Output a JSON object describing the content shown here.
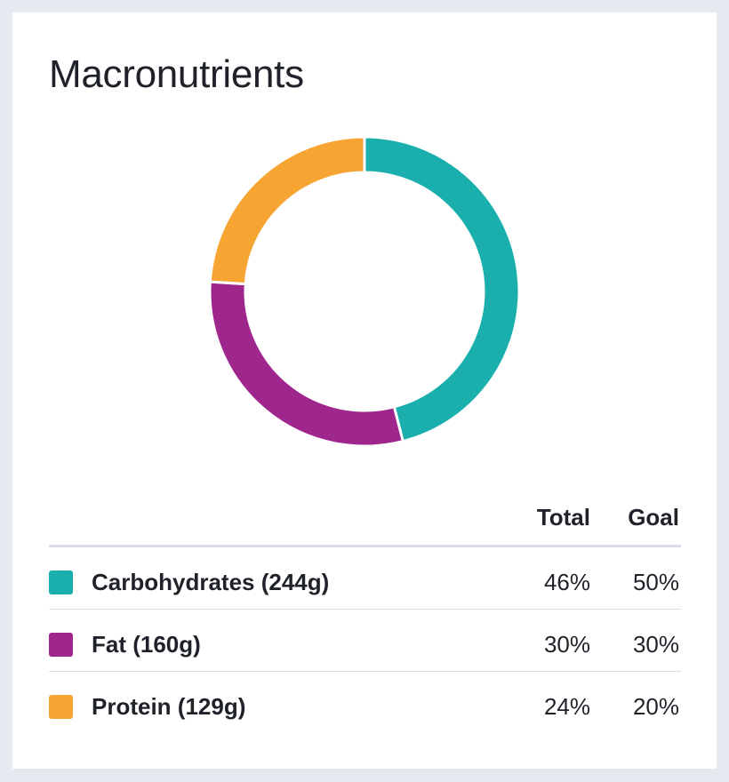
{
  "card": {
    "title": "Macronutrients"
  },
  "table": {
    "headers": {
      "total": "Total",
      "goal": "Goal"
    },
    "rows": [
      {
        "label": "Carbohydrates (244g)",
        "total": "46%",
        "goal": "50%",
        "color": "#1aafac"
      },
      {
        "label": "Fat (160g)",
        "total": "30%",
        "goal": "30%",
        "color": "#9e268d"
      },
      {
        "label": "Protein (129g)",
        "total": "24%",
        "goal": "20%",
        "color": "#f7a532"
      }
    ]
  },
  "chart_data": {
    "type": "pie",
    "style": "donut",
    "categories": [
      "Carbohydrates",
      "Fat",
      "Protein"
    ],
    "values": [
      46,
      30,
      24
    ],
    "colors": [
      "#1aafac",
      "#9e268d",
      "#f7a532"
    ],
    "start_angle": "top",
    "direction": "clockwise",
    "legend": "table-below"
  }
}
